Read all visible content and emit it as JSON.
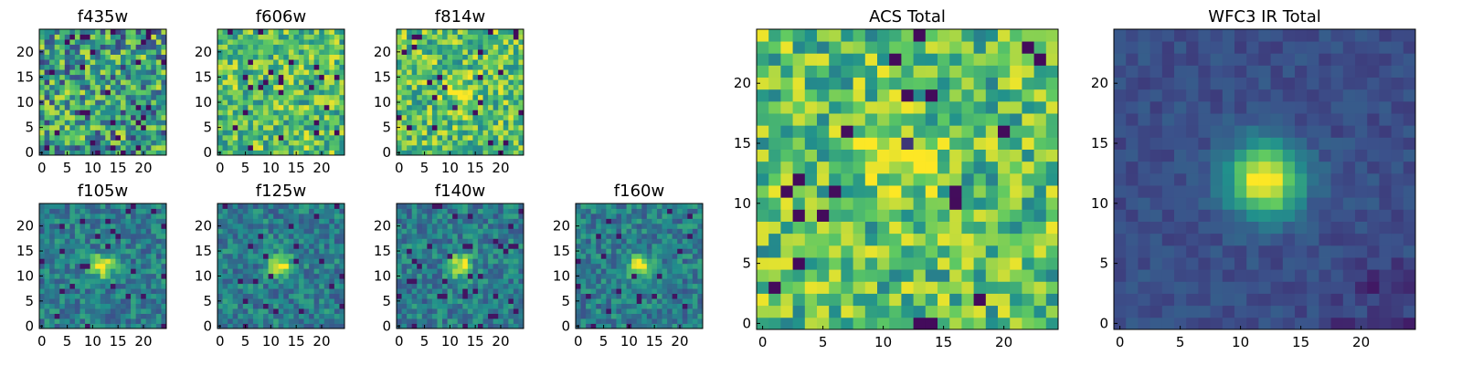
{
  "figure": {
    "colormap": [
      "#440154",
      "#3b528b",
      "#21918c",
      "#5ec962",
      "#fde725"
    ]
  },
  "chart_data": [
    {
      "type": "heatmap",
      "title": "f435w",
      "grid": [
        25,
        25
      ],
      "xticks": [
        0,
        5,
        10,
        15,
        20
      ],
      "yticks": [
        0,
        5,
        10,
        15,
        20
      ],
      "xlim": [
        0,
        24
      ],
      "ylim": [
        0,
        24
      ],
      "style": "noise_mid",
      "source_peak": [
        0,
        0
      ],
      "seed": 11
    },
    {
      "type": "heatmap",
      "title": "f606w",
      "grid": [
        25,
        25
      ],
      "xticks": [
        0,
        5,
        10,
        15,
        20
      ],
      "yticks": [
        0,
        5,
        10,
        15,
        20
      ],
      "xlim": [
        0,
        24
      ],
      "ylim": [
        0,
        24
      ],
      "style": "noise_bright",
      "source_peak": [
        0,
        0
      ],
      "seed": 23
    },
    {
      "type": "heatmap",
      "title": "f814w",
      "grid": [
        25,
        25
      ],
      "xticks": [
        0,
        5,
        10,
        15,
        20
      ],
      "yticks": [
        0,
        5,
        10,
        15,
        20
      ],
      "xlim": [
        0,
        24
      ],
      "ylim": [
        0,
        24
      ],
      "style": "noise_bright",
      "source_peak": [
        12,
        12
      ],
      "seed": 37
    },
    {
      "type": "heatmap",
      "title": "f105w",
      "grid": [
        25,
        25
      ],
      "xticks": [
        0,
        5,
        10,
        15,
        20
      ],
      "yticks": [
        0,
        5,
        10,
        15,
        20
      ],
      "xlim": [
        0,
        24
      ],
      "ylim": [
        0,
        24
      ],
      "style": "source",
      "source_peak": [
        12,
        12
      ],
      "seed": 41
    },
    {
      "type": "heatmap",
      "title": "f125w",
      "grid": [
        25,
        25
      ],
      "xticks": [
        0,
        5,
        10,
        15,
        20
      ],
      "yticks": [
        0,
        5,
        10,
        15,
        20
      ],
      "xlim": [
        0,
        24
      ],
      "ylim": [
        0,
        24
      ],
      "style": "source",
      "source_peak": [
        12,
        12
      ],
      "seed": 53
    },
    {
      "type": "heatmap",
      "title": "f140w",
      "grid": [
        25,
        25
      ],
      "xticks": [
        0,
        5,
        10,
        15,
        20
      ],
      "yticks": [
        0,
        5,
        10,
        15,
        20
      ],
      "xlim": [
        0,
        24
      ],
      "ylim": [
        0,
        24
      ],
      "style": "source",
      "source_peak": [
        12,
        12
      ],
      "seed": 67
    },
    {
      "type": "heatmap",
      "title": "f160w",
      "grid": [
        25,
        25
      ],
      "xticks": [
        0,
        5,
        10,
        15,
        20
      ],
      "yticks": [
        0,
        5,
        10,
        15,
        20
      ],
      "xlim": [
        0,
        24
      ],
      "ylim": [
        0,
        24
      ],
      "style": "source",
      "source_peak": [
        12,
        12
      ],
      "seed": 79
    },
    {
      "type": "heatmap",
      "title": "ACS Total",
      "grid": [
        25,
        25
      ],
      "xticks": [
        0,
        5,
        10,
        15,
        20
      ],
      "yticks": [
        0,
        5,
        10,
        15,
        20
      ],
      "xlim": [
        0,
        24
      ],
      "ylim": [
        0,
        24
      ],
      "style": "noise_bright",
      "source_peak": [
        11,
        13
      ],
      "seed": 97
    },
    {
      "type": "heatmap",
      "title": "WFC3 IR Total",
      "grid": [
        25,
        25
      ],
      "xticks": [
        0,
        5,
        10,
        15,
        20
      ],
      "yticks": [
        0,
        5,
        10,
        15,
        20
      ],
      "xlim": [
        0,
        24
      ],
      "ylim": [
        0,
        24
      ],
      "style": "total_ir",
      "source_peak": [
        12,
        12
      ],
      "seed": 101
    }
  ]
}
